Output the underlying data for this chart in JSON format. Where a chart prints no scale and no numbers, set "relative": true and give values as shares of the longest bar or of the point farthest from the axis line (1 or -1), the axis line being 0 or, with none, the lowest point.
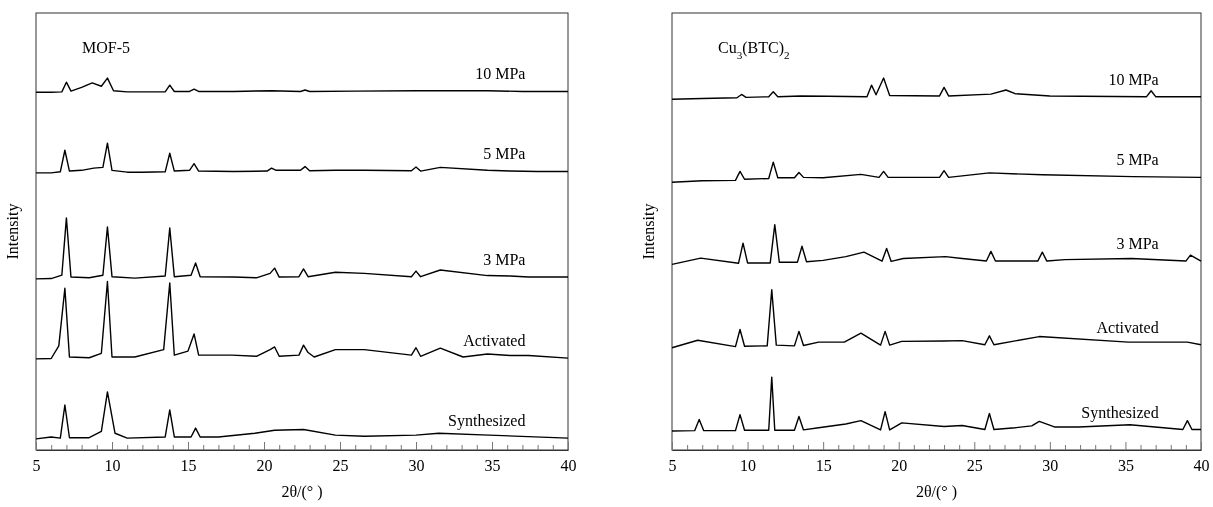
{
  "chart_data": [
    {
      "type": "line",
      "title": "MOF-5",
      "xlabel": "2θ/(° )",
      "ylabel": "Intensity",
      "relative": true,
      "tick_labels": "x",
      "xlim": [
        5,
        40
      ],
      "xticks": [
        5,
        {
          "value": 6,
          "label": null
        },
        {
          "value": 7,
          "label": null
        },
        {
          "value": 8,
          "label": null
        },
        {
          "value": 9,
          "label": null
        },
        10,
        {
          "value": 11,
          "label": null
        },
        {
          "value": 12,
          "label": null
        },
        {
          "value": 13,
          "label": null
        },
        {
          "value": 14,
          "label": null
        },
        15,
        {
          "value": 16,
          "label": null
        },
        {
          "value": 17,
          "label": null
        },
        {
          "value": 18,
          "label": null
        },
        {
          "value": 19,
          "label": null
        },
        20,
        {
          "value": 21,
          "label": null
        },
        {
          "value": 22,
          "label": null
        },
        {
          "value": 23,
          "label": null
        },
        {
          "value": 24,
          "label": null
        },
        25,
        {
          "value": 26,
          "label": null
        },
        {
          "value": 27,
          "label": null
        },
        {
          "value": 28,
          "label": null
        },
        {
          "value": 29,
          "label": null
        },
        30,
        {
          "value": 31,
          "label": null
        },
        {
          "value": 32,
          "label": null
        },
        {
          "value": 33,
          "label": null
        },
        {
          "value": 34,
          "label": null
        },
        35,
        {
          "value": 36,
          "label": null
        },
        {
          "value": 37,
          "label": null
        },
        {
          "value": 38,
          "label": null
        },
        {
          "value": 39,
          "label": null
        },
        40
      ],
      "series": [
        {
          "name": "10 MPa",
          "color": "#000000",
          "x": [
            5,
            6,
            6.7,
            7.0,
            7.3,
            8.0,
            8.7,
            9.3,
            9.7,
            10.1,
            11,
            13.5,
            13.8,
            14.1,
            15.1,
            15.4,
            15.7,
            18,
            20.5,
            22.4,
            22.7,
            23,
            26,
            30,
            34.7,
            37,
            40
          ],
          "values": [
            0.962,
            0.962,
            0.963,
            0.989,
            0.965,
            0.975,
            0.987,
            0.978,
            1.0,
            0.966,
            0.963,
            0.963,
            0.981,
            0.964,
            0.964,
            0.97,
            0.964,
            0.964,
            0.966,
            0.964,
            0.968,
            0.964,
            0.965,
            0.966,
            0.966,
            0.964,
            0.964
          ]
        },
        {
          "name": "5 MPa",
          "color": "#000000",
          "x": [
            5,
            6,
            6.6,
            6.9,
            7.2,
            8,
            8.8,
            9.4,
            9.7,
            10,
            11,
            12,
            13.5,
            13.8,
            14.1,
            15.1,
            15.4,
            15.7,
            18,
            20.2,
            20.5,
            20.8,
            22.4,
            22.7,
            23,
            24.7,
            26.6,
            29.7,
            30,
            30.3,
            31.6,
            34.7,
            36.2,
            38,
            40
          ],
          "values": [
            0.745,
            0.745,
            0.748,
            0.806,
            0.75,
            0.752,
            0.758,
            0.76,
            0.825,
            0.752,
            0.747,
            0.747,
            0.748,
            0.798,
            0.75,
            0.752,
            0.77,
            0.75,
            0.749,
            0.75,
            0.758,
            0.752,
            0.752,
            0.762,
            0.751,
            0.752,
            0.752,
            0.751,
            0.761,
            0.75,
            0.76,
            0.752,
            0.75,
            0.749,
            0.749
          ]
        },
        {
          "name": "3 MPa",
          "color": "#000000",
          "x": [
            5,
            6,
            6.7,
            7.0,
            7.3,
            8.5,
            9.4,
            9.7,
            10,
            11.5,
            13.5,
            13.8,
            14.1,
            15.2,
            15.5,
            15.8,
            18,
            19.5,
            20.4,
            20.7,
            21,
            22.3,
            22.6,
            22.9,
            24.7,
            26.6,
            29.7,
            30,
            30.3,
            31.6,
            34.7,
            36.2,
            37.4,
            40
          ],
          "values": [
            0.46,
            0.461,
            0.47,
            0.624,
            0.465,
            0.463,
            0.47,
            0.6,
            0.466,
            0.462,
            0.468,
            0.597,
            0.466,
            0.47,
            0.503,
            0.466,
            0.465,
            0.463,
            0.475,
            0.489,
            0.465,
            0.466,
            0.487,
            0.466,
            0.478,
            0.475,
            0.466,
            0.481,
            0.466,
            0.484,
            0.469,
            0.468,
            0.465,
            0.465
          ]
        },
        {
          "name": "Activated",
          "color": "#000000",
          "x": [
            5,
            6,
            6.5,
            6.9,
            7.2,
            8.5,
            9.3,
            9.7,
            10,
            11.5,
            13.4,
            13.8,
            14.1,
            15.0,
            15.4,
            15.7,
            17.9,
            19.5,
            20.4,
            20.7,
            21,
            22.3,
            22.6,
            22.9,
            23.3,
            24.7,
            26.6,
            29.7,
            30,
            30.3,
            31.6,
            33.1,
            34.7,
            36.2,
            37.4,
            40
          ],
          "values": [
            0.245,
            0.246,
            0.28,
            0.435,
            0.25,
            0.248,
            0.26,
            0.453,
            0.25,
            0.25,
            0.27,
            0.449,
            0.255,
            0.266,
            0.312,
            0.255,
            0.255,
            0.252,
            0.27,
            0.277,
            0.252,
            0.255,
            0.282,
            0.262,
            0.25,
            0.27,
            0.27,
            0.255,
            0.275,
            0.252,
            0.274,
            0.25,
            0.258,
            0.254,
            0.254,
            0.247
          ]
        },
        {
          "name": "Synthesized",
          "color": "#000000",
          "x": [
            5,
            6,
            6.6,
            6.9,
            7.2,
            8.5,
            9.3,
            9.7,
            10.2,
            11,
            13.5,
            13.8,
            14.1,
            15.2,
            15.5,
            15.8,
            17,
            19.4,
            20.7,
            22.6,
            24.7,
            26.6,
            30,
            31.5,
            34.8,
            40
          ],
          "values": [
            0.03,
            0.035,
            0.032,
            0.121,
            0.033,
            0.033,
            0.05,
            0.156,
            0.045,
            0.032,
            0.035,
            0.108,
            0.035,
            0.035,
            0.059,
            0.035,
            0.035,
            0.045,
            0.053,
            0.055,
            0.04,
            0.037,
            0.04,
            0.045,
            0.04,
            0.032
          ]
        }
      ]
    },
    {
      "type": "line",
      "title": "Cu$_{3}$(BTC)$_{2}$",
      "xlabel": "2θ/(° )",
      "ylabel": "Intensity",
      "relative": true,
      "tick_labels": "x",
      "xlim": [
        5,
        40
      ],
      "xticks": [
        5,
        {
          "value": 6,
          "label": null
        },
        {
          "value": 7,
          "label": null
        },
        {
          "value": 8,
          "label": null
        },
        {
          "value": 9,
          "label": null
        },
        10,
        {
          "value": 11,
          "label": null
        },
        {
          "value": 12,
          "label": null
        },
        {
          "value": 13,
          "label": null
        },
        {
          "value": 14,
          "label": null
        },
        15,
        {
          "value": 16,
          "label": null
        },
        {
          "value": 17,
          "label": null
        },
        {
          "value": 18,
          "label": null
        },
        {
          "value": 19,
          "label": null
        },
        20,
        {
          "value": 21,
          "label": null
        },
        {
          "value": 22,
          "label": null
        },
        {
          "value": 23,
          "label": null
        },
        {
          "value": 24,
          "label": null
        },
        25,
        {
          "value": 26,
          "label": null
        },
        {
          "value": 27,
          "label": null
        },
        {
          "value": 28,
          "label": null
        },
        {
          "value": 29,
          "label": null
        },
        30,
        {
          "value": 31,
          "label": null
        },
        {
          "value": 32,
          "label": null
        },
        {
          "value": 33,
          "label": null
        },
        {
          "value": 34,
          "label": null
        },
        35,
        {
          "value": 36,
          "label": null
        },
        {
          "value": 37,
          "label": null
        },
        {
          "value": 38,
          "label": null
        },
        {
          "value": 39,
          "label": null
        },
        40
      ],
      "series": [
        {
          "name": "10 MPa",
          "color": "#000000",
          "x": [
            5,
            7,
            9.3,
            9.6,
            9.9,
            11.4,
            11.7,
            12,
            13.5,
            15.3,
            17.9,
            18.2,
            18.5,
            19.0,
            19.4,
            22.7,
            23.0,
            23.3,
            26.1,
            27.1,
            27.7,
            30,
            36.4,
            36.7,
            37,
            40
          ],
          "values": [
            0.943,
            0.945,
            0.947,
            0.956,
            0.948,
            0.95,
            0.963,
            0.95,
            0.952,
            0.951,
            0.95,
            0.981,
            0.955,
            1.0,
            0.953,
            0.952,
            0.975,
            0.952,
            0.957,
            0.968,
            0.958,
            0.952,
            0.95,
            0.966,
            0.95,
            0.95
          ]
        },
        {
          "name": "5 MPa",
          "color": "#000000",
          "x": [
            5,
            7,
            9.2,
            9.5,
            9.8,
            11.4,
            11.7,
            12,
            13.1,
            13.4,
            13.7,
            15,
            17.5,
            18.7,
            19.0,
            19.3,
            22.7,
            23.0,
            23.3,
            26.0,
            29.5,
            35.5,
            40
          ],
          "values": [
            0.72,
            0.724,
            0.725,
            0.749,
            0.728,
            0.73,
            0.774,
            0.732,
            0.732,
            0.746,
            0.733,
            0.732,
            0.741,
            0.733,
            0.749,
            0.733,
            0.733,
            0.751,
            0.733,
            0.745,
            0.74,
            0.735,
            0.733
          ]
        },
        {
          "name": "3 MPa",
          "color": "#000000",
          "x": [
            5,
            6.9,
            9.4,
            9.7,
            10,
            11.5,
            11.8,
            12.1,
            13.3,
            13.6,
            13.9,
            15,
            16.5,
            17.7,
            18.9,
            19.2,
            19.5,
            20.3,
            23.1,
            24.2,
            25.8,
            26.1,
            26.4,
            29.2,
            29.5,
            29.8,
            31,
            35.4,
            39,
            39.3,
            40
          ],
          "values": [
            0.499,
            0.516,
            0.502,
            0.556,
            0.503,
            0.503,
            0.606,
            0.505,
            0.505,
            0.548,
            0.506,
            0.51,
            0.52,
            0.532,
            0.508,
            0.542,
            0.507,
            0.515,
            0.52,
            0.515,
            0.508,
            0.534,
            0.508,
            0.508,
            0.532,
            0.508,
            0.512,
            0.515,
            0.508,
            0.524,
            0.508
          ]
        },
        {
          "name": "Activated",
          "color": "#000000",
          "x": [
            5,
            6.7,
            9.2,
            9.5,
            9.8,
            11.3,
            11.6,
            11.9,
            13.1,
            13.4,
            13.7,
            14.7,
            16.4,
            17.5,
            18.8,
            19.1,
            19.4,
            20.2,
            23,
            24.2,
            25.7,
            26.0,
            26.3,
            29.3,
            35.2,
            39.1,
            40
          ],
          "values": [
            0.275,
            0.295,
            0.278,
            0.324,
            0.279,
            0.28,
            0.431,
            0.282,
            0.28,
            0.319,
            0.281,
            0.29,
            0.29,
            0.314,
            0.282,
            0.319,
            0.282,
            0.292,
            0.293,
            0.294,
            0.283,
            0.307,
            0.283,
            0.305,
            0.29,
            0.29,
            0.283
          ]
        },
        {
          "name": "Synthesized",
          "color": "#000000",
          "x": [
            5,
            6.5,
            6.8,
            7.1,
            9.2,
            9.5,
            9.8,
            11.4,
            11.6,
            11.8,
            13.1,
            13.4,
            13.7,
            14.7,
            16.5,
            17.5,
            18.8,
            19.1,
            19.4,
            20.2,
            23,
            24.2,
            25.7,
            26.0,
            26.3,
            27.7,
            28.8,
            29.3,
            30.3,
            31.9,
            35.3,
            38.8,
            39.1,
            39.4,
            40
          ],
          "values": [
            0.051,
            0.052,
            0.082,
            0.052,
            0.052,
            0.095,
            0.053,
            0.053,
            0.196,
            0.053,
            0.053,
            0.09,
            0.054,
            0.06,
            0.07,
            0.079,
            0.054,
            0.103,
            0.054,
            0.073,
            0.063,
            0.066,
            0.055,
            0.098,
            0.055,
            0.06,
            0.065,
            0.077,
            0.062,
            0.062,
            0.068,
            0.055,
            0.079,
            0.055,
            0.055
          ]
        }
      ]
    }
  ]
}
